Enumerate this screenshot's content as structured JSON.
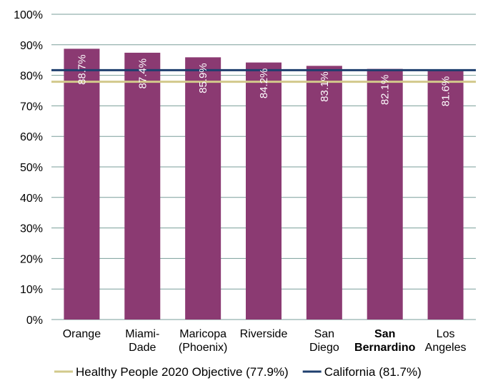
{
  "chart_data": {
    "type": "bar",
    "categories": [
      [
        "Orange"
      ],
      [
        "Miami-",
        "Dade"
      ],
      [
        "Maricopa",
        "(Phoenix)"
      ],
      [
        "Riverside"
      ],
      [
        "San",
        "Diego"
      ],
      [
        "San",
        "Bernardino"
      ],
      [
        "Los",
        "Angeles"
      ]
    ],
    "bold_categories": [
      5
    ],
    "values": [
      88.7,
      87.4,
      85.9,
      84.2,
      83.1,
      82.1,
      81.6
    ],
    "data_labels": [
      "88.7%",
      "87.4%",
      "85.9%",
      "84.2%",
      "83.1%",
      "82.1%",
      "81.6%"
    ],
    "ylim": [
      0,
      100
    ],
    "yticks": [
      0,
      10,
      20,
      30,
      40,
      50,
      60,
      70,
      80,
      90,
      100
    ],
    "ytick_labels": [
      "0%",
      "10%",
      "20%",
      "30%",
      "40%",
      "50%",
      "60%",
      "70%",
      "80%",
      "90%",
      "100%"
    ],
    "grid": true,
    "reference_lines": [
      {
        "name": "Healthy People 2020 Objective (77.9%)",
        "value": 77.9,
        "color": "#d2c98b"
      },
      {
        "name": "California (81.7%)",
        "value": 81.7,
        "color": "#1f3f6e"
      }
    ],
    "bar_color": "#8b3a72",
    "gridline_color": "#7a9e9a",
    "legend_position": "bottom"
  }
}
